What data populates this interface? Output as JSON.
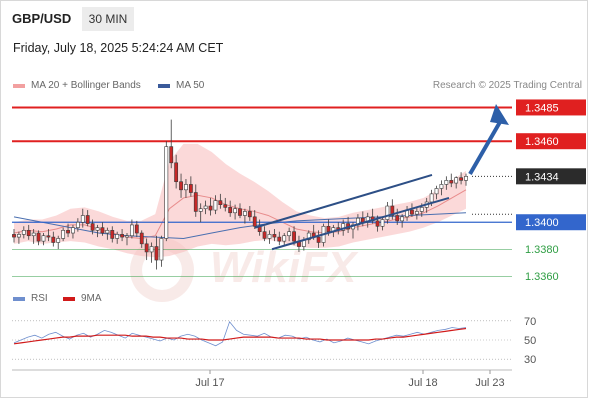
{
  "header": {
    "symbol": "GBP/USD",
    "timeframe": "30 MIN",
    "datetime": "Friday, July 18, 2025 5:24:24 AM CET"
  },
  "legend": {
    "ma20_label": "MA 20 + Bollinger Bands",
    "ma50_label": "MA 50",
    "credit": "Research © 2025 Trading Central",
    "rsi_label": "RSI",
    "rsi_ma_label": "9MA"
  },
  "colors": {
    "resistance": "#e02020",
    "support": "#2f9e44",
    "pivot": "#3366cc",
    "price_box": "#2b2b2b",
    "trend_arrow": "#2d5fa8",
    "channel": "#2d4f86",
    "candle_up": "#ffffff",
    "candle_down": "#c62828",
    "bollinger": "#f7b9b9",
    "ma50": "#4a6fb0",
    "rsi": "#6f8fce",
    "rsi_ma": "#d11a1a"
  },
  "chart_data": [
    {
      "type": "candlestick",
      "title": "GBP/USD",
      "timeframe": "30 MIN",
      "x_ticks": [
        "Jul 17",
        "Jul 18",
        "Jul 23"
      ],
      "ylim": [
        1.3355,
        1.3492
      ],
      "levels": [
        {
          "value": 1.3485,
          "label": "1.3485",
          "kind": "resistance"
        },
        {
          "value": 1.346,
          "label": "1.3460",
          "kind": "resistance"
        },
        {
          "value": 1.3434,
          "label": "1.3434",
          "kind": "last_price"
        },
        {
          "value": 1.34,
          "label": "1.3400",
          "kind": "pivot"
        },
        {
          "value": 1.338,
          "label": "1.3380",
          "kind": "support"
        },
        {
          "value": 1.336,
          "label": "1.3360",
          "kind": "support"
        }
      ],
      "candles": [
        [
          1.3391,
          1.3395,
          1.3385,
          1.3389
        ],
        [
          1.3389,
          1.3393,
          1.3384,
          1.3391
        ],
        [
          1.3391,
          1.3397,
          1.3388,
          1.3394
        ],
        [
          1.3394,
          1.3398,
          1.3387,
          1.339
        ],
        [
          1.339,
          1.3395,
          1.3384,
          1.3392
        ],
        [
          1.3392,
          1.3394,
          1.3383,
          1.3386
        ],
        [
          1.3386,
          1.3392,
          1.3383,
          1.339
        ],
        [
          1.339,
          1.3395,
          1.3386,
          1.3389
        ],
        [
          1.3389,
          1.3393,
          1.3382,
          1.3385
        ],
        [
          1.3385,
          1.339,
          1.338,
          1.3388
        ],
        [
          1.3388,
          1.3396,
          1.3386,
          1.3394
        ],
        [
          1.3394,
          1.3399,
          1.3389,
          1.3392
        ],
        [
          1.3392,
          1.3398,
          1.3388,
          1.3396
        ],
        [
          1.3396,
          1.3403,
          1.3393,
          1.34
        ],
        [
          1.34,
          1.341,
          1.3396,
          1.3405
        ],
        [
          1.3405,
          1.3409,
          1.3397,
          1.3399
        ],
        [
          1.3399,
          1.3402,
          1.3391,
          1.3394
        ],
        [
          1.3394,
          1.3398,
          1.3389,
          1.3396
        ],
        [
          1.3396,
          1.34,
          1.339,
          1.3392
        ],
        [
          1.3392,
          1.3396,
          1.3387,
          1.3394
        ],
        [
          1.3394,
          1.3397,
          1.3385,
          1.3388
        ],
        [
          1.3388,
          1.3393,
          1.3384,
          1.3391
        ],
        [
          1.3391,
          1.3395,
          1.3386,
          1.3389
        ],
        [
          1.3389,
          1.3392,
          1.3383,
          1.339
        ],
        [
          1.339,
          1.3402,
          1.3388,
          1.3398
        ],
        [
          1.3398,
          1.3401,
          1.3389,
          1.3392
        ],
        [
          1.3392,
          1.3394,
          1.3381,
          1.3384
        ],
        [
          1.3384,
          1.3388,
          1.3372,
          1.3378
        ],
        [
          1.3378,
          1.3385,
          1.337,
          1.3382
        ],
        [
          1.3382,
          1.339,
          1.3365,
          1.3372
        ],
        [
          1.3372,
          1.339,
          1.3367,
          1.3388
        ],
        [
          1.3388,
          1.346,
          1.3386,
          1.3456
        ],
        [
          1.3456,
          1.3476,
          1.344,
          1.3444
        ],
        [
          1.3444,
          1.345,
          1.3425,
          1.343
        ],
        [
          1.343,
          1.3436,
          1.3418,
          1.3424
        ],
        [
          1.3424,
          1.3432,
          1.3418,
          1.3428
        ],
        [
          1.3428,
          1.3434,
          1.3419,
          1.3422
        ],
        [
          1.3422,
          1.3428,
          1.3404,
          1.3408
        ],
        [
          1.3408,
          1.3414,
          1.34,
          1.341
        ],
        [
          1.341,
          1.3416,
          1.3406,
          1.3412
        ],
        [
          1.3412,
          1.3418,
          1.3405,
          1.3409
        ],
        [
          1.3409,
          1.342,
          1.3406,
          1.3416
        ],
        [
          1.3416,
          1.3421,
          1.341,
          1.3413
        ],
        [
          1.3413,
          1.3418,
          1.3408,
          1.3411
        ],
        [
          1.3411,
          1.3416,
          1.3404,
          1.3407
        ],
        [
          1.3407,
          1.3413,
          1.3402,
          1.341
        ],
        [
          1.341,
          1.3414,
          1.3403,
          1.3405
        ],
        [
          1.3405,
          1.341,
          1.3399,
          1.3408
        ],
        [
          1.3408,
          1.3412,
          1.3401,
          1.3404
        ],
        [
          1.3404,
          1.3409,
          1.3395,
          1.3397
        ],
        [
          1.3397,
          1.3402,
          1.339,
          1.3393
        ],
        [
          1.3393,
          1.3397,
          1.3386,
          1.3388
        ],
        [
          1.3388,
          1.3394,
          1.3384,
          1.3391
        ],
        [
          1.3391,
          1.3395,
          1.3386,
          1.3389
        ],
        [
          1.3389,
          1.3393,
          1.3383,
          1.3386
        ],
        [
          1.3386,
          1.3392,
          1.3382,
          1.339
        ],
        [
          1.339,
          1.3396,
          1.3386,
          1.3393
        ],
        [
          1.3393,
          1.3397,
          1.3383,
          1.3386
        ],
        [
          1.3386,
          1.339,
          1.3378,
          1.3382
        ],
        [
          1.3382,
          1.3389,
          1.3379,
          1.3387
        ],
        [
          1.3387,
          1.3394,
          1.3384,
          1.3392
        ],
        [
          1.3392,
          1.3398,
          1.3387,
          1.3389
        ],
        [
          1.3389,
          1.3394,
          1.3381,
          1.3385
        ],
        [
          1.3385,
          1.3399,
          1.3382,
          1.3397
        ],
        [
          1.3397,
          1.3402,
          1.339,
          1.3393
        ],
        [
          1.3393,
          1.3398,
          1.3389,
          1.3396
        ],
        [
          1.3396,
          1.34,
          1.3391,
          1.3394
        ],
        [
          1.3394,
          1.3402,
          1.339,
          1.3399
        ],
        [
          1.3399,
          1.3404,
          1.3392,
          1.3395
        ],
        [
          1.3395,
          1.34,
          1.3388,
          1.3398
        ],
        [
          1.3398,
          1.3406,
          1.3394,
          1.3403
        ],
        [
          1.3403,
          1.3408,
          1.3397,
          1.34
        ],
        [
          1.34,
          1.3407,
          1.3396,
          1.3404
        ],
        [
          1.3404,
          1.341,
          1.3399,
          1.3401
        ],
        [
          1.3401,
          1.3405,
          1.3393,
          1.3397
        ],
        [
          1.3397,
          1.3404,
          1.3394,
          1.3402
        ],
        [
          1.3402,
          1.3415,
          1.3399,
          1.3412
        ],
        [
          1.3412,
          1.3417,
          1.3402,
          1.3405
        ],
        [
          1.3405,
          1.341,
          1.3398,
          1.3401
        ],
        [
          1.3401,
          1.3406,
          1.3396,
          1.3404
        ],
        [
          1.3404,
          1.3412,
          1.3401,
          1.3409
        ],
        [
          1.3409,
          1.3414,
          1.3404,
          1.3406
        ],
        [
          1.3406,
          1.3411,
          1.3402,
          1.3408
        ],
        [
          1.3408,
          1.3414,
          1.3404,
          1.3411
        ],
        [
          1.3411,
          1.3418,
          1.3407,
          1.3415
        ],
        [
          1.3415,
          1.3424,
          1.3412,
          1.3421
        ],
        [
          1.3421,
          1.3427,
          1.3417,
          1.3425
        ],
        [
          1.3425,
          1.3431,
          1.342,
          1.3428
        ],
        [
          1.3428,
          1.3434,
          1.3424,
          1.3431
        ],
        [
          1.3431,
          1.3436,
          1.3426,
          1.3429
        ],
        [
          1.3429,
          1.3434,
          1.3425,
          1.3433
        ],
        [
          1.3433,
          1.3437,
          1.3428,
          1.3431
        ],
        [
          1.3431,
          1.3436,
          1.3427,
          1.3434
        ]
      ],
      "bollinger_mid": [
        1.3392,
        1.3394,
        1.3393,
        1.3395,
        1.3398,
        1.3398,
        1.3395,
        1.3392,
        1.3389,
        1.3388,
        1.339,
        1.341,
        1.3418,
        1.342,
        1.3418,
        1.3413,
        1.341,
        1.3408,
        1.3405,
        1.34,
        1.3395,
        1.3393,
        1.3392,
        1.3393,
        1.3396,
        1.3398,
        1.34,
        1.3402,
        1.3404,
        1.3407,
        1.3412,
        1.3418,
        1.3424
      ],
      "bollinger_width": [
        0.0008,
        0.0008,
        0.0009,
        0.001,
        0.0012,
        0.0013,
        0.0013,
        0.0012,
        0.0012,
        0.0013,
        0.0016,
        0.0035,
        0.004,
        0.0038,
        0.0034,
        0.003,
        0.0026,
        0.0022,
        0.0018,
        0.0015,
        0.0013,
        0.0012,
        0.0011,
        0.0011,
        0.0011,
        0.0011,
        0.0011,
        0.0011,
        0.0011,
        0.0011,
        0.0012,
        0.0013,
        0.0014
      ],
      "ma50": [
        1.3404,
        1.34,
        1.3396,
        1.3392,
        1.339,
        1.3389,
        1.3388,
        1.3392,
        1.3396,
        1.3399,
        1.3401,
        1.3402,
        1.3403,
        1.3404,
        1.3405,
        1.3406,
        1.3407
      ],
      "channel": {
        "upper": [
          1.3396,
          1.3435
        ],
        "lower": [
          1.338,
          1.3418
        ]
      },
      "forecast_target": "1.3485"
    },
    {
      "type": "line",
      "title": "RSI",
      "yticks": [
        30,
        50,
        70
      ],
      "ylim": [
        25,
        75
      ],
      "series": [
        {
          "name": "RSI",
          "values": [
            47,
            50,
            53,
            55,
            52,
            56,
            58,
            54,
            51,
            55,
            57,
            53,
            56,
            60,
            58,
            55,
            52,
            57,
            55,
            53,
            51,
            49,
            52,
            50,
            54,
            56,
            54,
            50,
            47,
            44,
            48,
            69,
            60,
            56,
            55,
            54,
            57,
            53,
            52,
            55,
            54,
            51,
            53,
            50,
            48,
            51,
            47,
            49,
            52,
            50,
            48,
            46,
            49,
            51,
            53,
            55,
            54,
            56,
            58,
            56,
            58,
            60,
            61,
            63,
            62,
            63
          ]
        },
        {
          "name": "9MA",
          "values": [
            46,
            47,
            48,
            49,
            50,
            51,
            52,
            53,
            53,
            54,
            54,
            54,
            55,
            55,
            55,
            55,
            55,
            54,
            54,
            54,
            53,
            53,
            52,
            52,
            52,
            51,
            51,
            51,
            50,
            50,
            50,
            51,
            52,
            53,
            53,
            53,
            53,
            53,
            52,
            52,
            52,
            52,
            51,
            51,
            51,
            50,
            50,
            50,
            50,
            50,
            50,
            50,
            51,
            51,
            52,
            53,
            53,
            54,
            55,
            56,
            57,
            58,
            59,
            60,
            61,
            62
          ]
        }
      ]
    }
  ]
}
